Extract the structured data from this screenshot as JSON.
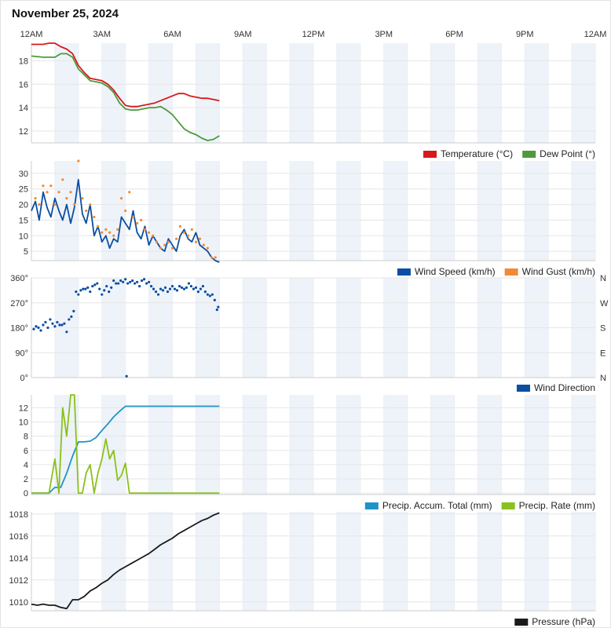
{
  "page_title": "November 25, 2024",
  "time_axis": {
    "tick_labels": [
      "12AM",
      "3AM",
      "6AM",
      "9AM",
      "12PM",
      "3PM",
      "6PM",
      "9PM",
      "12AM"
    ],
    "range_hours": [
      0,
      24
    ]
  },
  "colors": {
    "temperature": "#d7191c",
    "dew_point": "#4e9a3a",
    "wind_speed": "#0b4ea2",
    "wind_gust": "#f28a35",
    "wind_direction": "#0b4ea2",
    "precip_accum": "#1f93c7",
    "precip_rate": "#8ac11a",
    "pressure": "#1a1a1a",
    "band": "#eef3f9"
  },
  "chart_data": [
    {
      "type": "line",
      "ylim": [
        11,
        19.5
      ],
      "yticks": [
        "12",
        "14",
        "16",
        "18"
      ],
      "grid": true,
      "legend_position": "bottom-right",
      "series": [
        {
          "name": "Temperature (°C)",
          "x": [
            0,
            0.5,
            0.75,
            1,
            1.25,
            1.5,
            1.75,
            2,
            2.25,
            2.5,
            2.75,
            3,
            3.25,
            3.5,
            3.75,
            4,
            4.25,
            4.5,
            4.75,
            5,
            5.25,
            5.5,
            5.75,
            6,
            6.25,
            6.5,
            6.75,
            7,
            7.25,
            7.5,
            7.75,
            8
          ],
          "values": [
            19.4,
            19.4,
            19.5,
            19.5,
            19.2,
            19.0,
            18.6,
            17.6,
            17.0,
            16.5,
            16.4,
            16.3,
            16.0,
            15.5,
            14.8,
            14.2,
            14.1,
            14.1,
            14.2,
            14.3,
            14.4,
            14.6,
            14.8,
            15.0,
            15.2,
            15.2,
            15.0,
            14.9,
            14.8,
            14.8,
            14.7,
            14.6
          ]
        },
        {
          "name": "Dew Point (°)",
          "x": [
            0,
            0.5,
            0.75,
            1,
            1.25,
            1.5,
            1.75,
            2,
            2.25,
            2.5,
            2.75,
            3,
            3.25,
            3.5,
            3.75,
            4,
            4.25,
            4.5,
            4.75,
            5,
            5.25,
            5.5,
            5.75,
            6,
            6.25,
            6.5,
            6.75,
            7,
            7.25,
            7.5,
            7.75,
            8
          ],
          "values": [
            18.4,
            18.3,
            18.3,
            18.3,
            18.6,
            18.6,
            18.3,
            17.3,
            16.8,
            16.3,
            16.2,
            16.1,
            15.8,
            15.3,
            14.4,
            13.9,
            13.8,
            13.8,
            13.9,
            14.0,
            14.0,
            14.1,
            13.8,
            13.4,
            12.8,
            12.2,
            11.9,
            11.7,
            11.4,
            11.2,
            11.3,
            11.6
          ]
        }
      ]
    },
    {
      "type": "line",
      "ylim": [
        2,
        34
      ],
      "yticks": [
        "5",
        "10",
        "15",
        "20",
        "25",
        "30"
      ],
      "grid": true,
      "legend_position": "bottom-right",
      "series": [
        {
          "name": "Wind Speed (km/h)",
          "x": [
            0,
            0.17,
            0.33,
            0.5,
            0.67,
            0.83,
            1,
            1.17,
            1.33,
            1.5,
            1.67,
            1.83,
            2,
            2.17,
            2.33,
            2.5,
            2.67,
            2.83,
            3,
            3.17,
            3.33,
            3.5,
            3.67,
            3.83,
            4,
            4.17,
            4.33,
            4.5,
            4.67,
            4.83,
            5,
            5.17,
            5.33,
            5.5,
            5.67,
            5.83,
            6,
            6.17,
            6.33,
            6.5,
            6.67,
            6.83,
            7,
            7.17,
            7.33,
            7.5,
            7.67,
            7.83,
            8
          ],
          "values": [
            18,
            21,
            15,
            24,
            19,
            16,
            22,
            18,
            15,
            20,
            14,
            19,
            28,
            17,
            14,
            20,
            10,
            13,
            8,
            10,
            6,
            9,
            8,
            16,
            14,
            12,
            18,
            11,
            9,
            13,
            7,
            10,
            8,
            6,
            5,
            9,
            7,
            5,
            10,
            12,
            9,
            8,
            11,
            7,
            6,
            5,
            3,
            2,
            1.5
          ]
        },
        {
          "name": "Wind Gust (km/h)",
          "x": [
            0.17,
            0.33,
            0.5,
            0.67,
            0.83,
            1,
            1.17,
            1.33,
            1.5,
            1.67,
            1.83,
            2,
            2.17,
            2.33,
            2.5,
            2.67,
            2.83,
            3,
            3.17,
            3.33,
            3.5,
            3.67,
            3.83,
            4,
            4.17,
            4.33,
            4.5,
            4.67,
            4.83,
            5,
            5.17,
            5.33,
            5.5,
            5.67,
            5.83,
            6,
            6.17,
            6.33,
            6.5,
            6.67,
            6.83,
            7,
            7.17,
            7.33,
            7.5,
            7.67,
            7.83
          ],
          "values": [
            22,
            20,
            26,
            24,
            26,
            20,
            24,
            28,
            22,
            24,
            20,
            34,
            22,
            18,
            20,
            16,
            13,
            11,
            12,
            11,
            10,
            12,
            22,
            18,
            24,
            16,
            14,
            15,
            12,
            11,
            10,
            8,
            6,
            7,
            8,
            6,
            9,
            13,
            11,
            10,
            12,
            8,
            9,
            7,
            6,
            3,
            3
          ]
        }
      ]
    },
    {
      "type": "scatter",
      "ylim": [
        0,
        360
      ],
      "yticks": [
        "0°",
        "90°",
        "180°",
        "270°",
        "360°"
      ],
      "right_ticks": [
        "N",
        "E",
        "S",
        "W",
        "N"
      ],
      "grid": true,
      "legend_position": "bottom-right",
      "series": [
        {
          "name": "Wind Direction",
          "x": [
            0.1,
            0.2,
            0.3,
            0.4,
            0.5,
            0.6,
            0.7,
            0.8,
            0.9,
            1.0,
            1.1,
            1.2,
            1.3,
            1.4,
            1.5,
            1.6,
            1.7,
            1.8,
            1.9,
            2.0,
            2.1,
            2.2,
            2.3,
            2.4,
            2.5,
            2.6,
            2.7,
            2.8,
            2.9,
            3.0,
            3.1,
            3.2,
            3.3,
            3.4,
            3.5,
            3.6,
            3.7,
            3.8,
            3.9,
            4.0,
            4.05,
            4.1,
            4.2,
            4.3,
            4.4,
            4.5,
            4.6,
            4.7,
            4.8,
            4.9,
            5.0,
            5.1,
            5.2,
            5.3,
            5.4,
            5.5,
            5.6,
            5.7,
            5.8,
            5.9,
            6.0,
            6.1,
            6.2,
            6.3,
            6.4,
            6.5,
            6.6,
            6.7,
            6.8,
            6.9,
            7.0,
            7.1,
            7.2,
            7.3,
            7.4,
            7.5,
            7.6,
            7.7,
            7.8,
            7.9,
            7.95
          ],
          "values": [
            175,
            185,
            180,
            170,
            190,
            200,
            180,
            210,
            195,
            185,
            200,
            190,
            190,
            195,
            165,
            210,
            220,
            240,
            310,
            300,
            315,
            320,
            320,
            325,
            310,
            330,
            335,
            340,
            320,
            300,
            315,
            330,
            310,
            325,
            350,
            340,
            340,
            350,
            345,
            355,
            5,
            340,
            345,
            350,
            340,
            345,
            330,
            350,
            355,
            340,
            345,
            330,
            320,
            310,
            300,
            320,
            315,
            325,
            310,
            320,
            330,
            320,
            315,
            330,
            325,
            320,
            325,
            340,
            330,
            320,
            325,
            310,
            320,
            330,
            310,
            300,
            295,
            300,
            280,
            245,
            255
          ]
        }
      ]
    },
    {
      "type": "line",
      "ylim": [
        -0.2,
        13.8
      ],
      "yticks": [
        "0",
        "2",
        "4",
        "6",
        "8",
        "10",
        "12"
      ],
      "grid": true,
      "legend_position": "bottom-right",
      "series": [
        {
          "name": "Precip. Accum. Total (mm)",
          "x": [
            0,
            0.5,
            0.75,
            1,
            1.25,
            1.5,
            1.75,
            2,
            2.25,
            2.5,
            2.75,
            3,
            3.25,
            3.5,
            3.75,
            4,
            4.25,
            4.5,
            4.75,
            5,
            5.25,
            5.5,
            5.75,
            6,
            6.25,
            6.5,
            6.75,
            7,
            7.25,
            7.5,
            7.75,
            8
          ],
          "values": [
            0,
            0,
            0,
            0.8,
            0.8,
            2.8,
            5.2,
            7.2,
            7.2,
            7.3,
            7.8,
            8.8,
            9.7,
            10.7,
            11.5,
            12.2,
            12.2,
            12.2,
            12.2,
            12.2,
            12.2,
            12.2,
            12.2,
            12.2,
            12.2,
            12.2,
            12.2,
            12.2,
            12.2,
            12.2,
            12.2,
            12.2
          ]
        },
        {
          "name": "Precip. Rate (mm)",
          "x": [
            0,
            0.5,
            0.75,
            1,
            1.17,
            1.33,
            1.5,
            1.67,
            1.83,
            2,
            2.08,
            2.17,
            2.33,
            2.5,
            2.67,
            2.83,
            3,
            3.17,
            3.33,
            3.5,
            3.67,
            3.83,
            4,
            4.17,
            4.33,
            4.5,
            5,
            6,
            7,
            8
          ],
          "values": [
            0,
            0,
            0,
            4.8,
            0,
            12,
            8,
            13.8,
            13.8,
            0,
            0,
            0,
            2.8,
            4,
            0,
            2.8,
            4.8,
            7.6,
            4.8,
            6,
            1.8,
            2.5,
            4.2,
            0,
            0,
            0,
            0,
            0,
            0,
            0
          ]
        }
      ]
    },
    {
      "type": "line",
      "ylim": [
        1009.2,
        1018.2
      ],
      "yticks": [
        "1010",
        "1012",
        "1014",
        "1016",
        "1018"
      ],
      "grid": true,
      "legend_position": "bottom-right",
      "series": [
        {
          "name": "Pressure (hPa)",
          "x": [
            0,
            0.25,
            0.5,
            0.75,
            1,
            1.25,
            1.5,
            1.75,
            2,
            2.25,
            2.5,
            2.75,
            3,
            3.25,
            3.5,
            3.75,
            4,
            4.25,
            4.5,
            4.75,
            5,
            5.25,
            5.5,
            5.75,
            6,
            6.25,
            6.5,
            6.75,
            7,
            7.25,
            7.5,
            7.75,
            8
          ],
          "values": [
            1009.8,
            1009.7,
            1009.8,
            1009.7,
            1009.7,
            1009.5,
            1009.4,
            1010.2,
            1010.2,
            1010.5,
            1011.0,
            1011.3,
            1011.7,
            1012.0,
            1012.5,
            1012.9,
            1013.2,
            1013.5,
            1013.8,
            1014.1,
            1014.4,
            1014.8,
            1015.2,
            1015.5,
            1015.8,
            1016.2,
            1016.5,
            1016.8,
            1017.1,
            1017.4,
            1017.6,
            1017.9,
            1018.1
          ]
        }
      ]
    }
  ]
}
